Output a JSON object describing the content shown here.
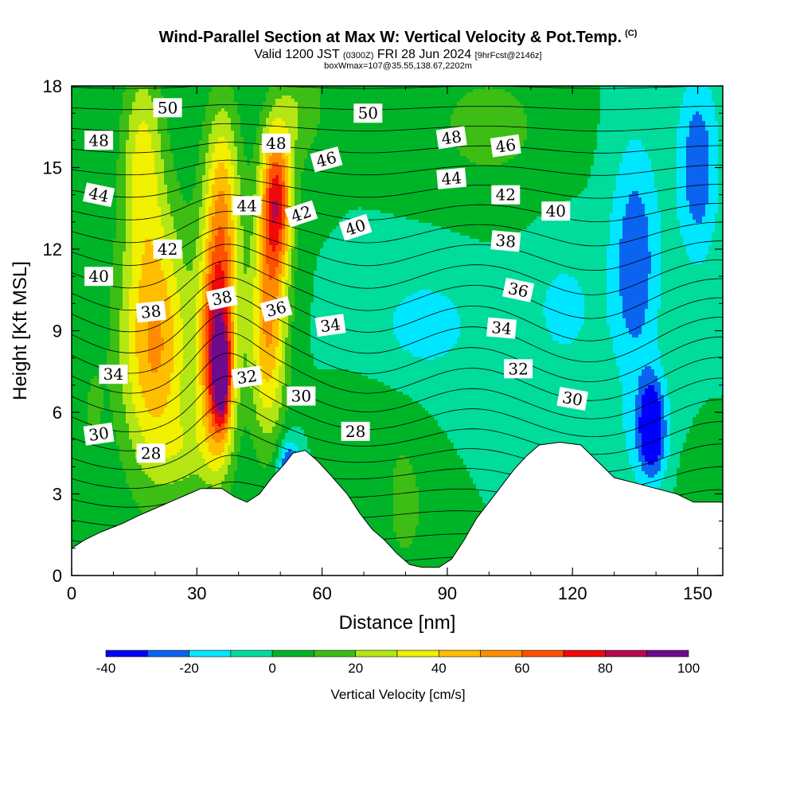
{
  "header": {
    "title": "Wind-Parallel Section at Max W: Vertical Velocity & Pot.Temp.",
    "copyright": "(C)",
    "valid_prefix": "Valid 1200 JST",
    "valid_utc": "(0300Z)",
    "valid_date": "FRI 28 Jun 2024",
    "forecast": "[9hrFcst@2146z]",
    "box_info": "boxWmax=107@35.55,138.67,2202m"
  },
  "chart_data": {
    "type": "heatmap",
    "xlabel": "Distance [nm]",
    "ylabel": "Height [Kft MSL]",
    "xlim": [
      0,
      156
    ],
    "ylim": [
      0,
      18
    ],
    "x_ticks": [
      0,
      30,
      60,
      90,
      120,
      150
    ],
    "y_ticks": [
      0,
      3,
      6,
      9,
      12,
      15,
      18
    ],
    "x_tick_labels": [
      "0",
      "30",
      "60",
      "90",
      "120",
      "150"
    ],
    "y_tick_labels": [
      "0",
      "3",
      "6",
      "9",
      "12",
      "15",
      "18"
    ],
    "colorbar": {
      "title": "Vertical Velocity [cm/s]",
      "levels": [
        -40,
        -30,
        -20,
        -10,
        0,
        10,
        20,
        30,
        40,
        50,
        60,
        70,
        80,
        90,
        100
      ],
      "tick_labels": [
        "-40",
        "-20",
        "0",
        "20",
        "40",
        "60",
        "80",
        "100"
      ],
      "colors": [
        "#0000ff",
        "#0a64f0",
        "#00e6ff",
        "#00dc9c",
        "#00b428",
        "#3cbe14",
        "#b4e614",
        "#f0f000",
        "#ffbe00",
        "#ff8c00",
        "#ff5000",
        "#f00a0a",
        "#b40a4b",
        "#6e0a8c"
      ]
    },
    "terrain": [
      [
        0,
        1.0
      ],
      [
        3,
        1.3
      ],
      [
        7,
        1.6
      ],
      [
        12,
        1.9
      ],
      [
        16,
        2.2
      ],
      [
        19,
        2.4
      ],
      [
        22,
        2.6
      ],
      [
        25,
        2.8
      ],
      [
        28,
        3.0
      ],
      [
        31,
        3.2
      ],
      [
        36,
        3.2
      ],
      [
        39,
        2.9
      ],
      [
        42,
        2.7
      ],
      [
        45,
        3.0
      ],
      [
        48,
        3.6
      ],
      [
        51,
        4.1
      ],
      [
        53,
        4.5
      ],
      [
        56,
        4.6
      ],
      [
        59,
        4.2
      ],
      [
        62,
        3.7
      ],
      [
        66,
        3.0
      ],
      [
        69,
        2.3
      ],
      [
        72,
        1.7
      ],
      [
        75,
        1.3
      ],
      [
        78,
        0.8
      ],
      [
        81,
        0.4
      ],
      [
        84,
        0.3
      ],
      [
        88,
        0.3
      ],
      [
        91,
        0.6
      ],
      [
        94,
        1.3
      ],
      [
        97,
        2.1
      ],
      [
        100,
        2.7
      ],
      [
        103,
        3.3
      ],
      [
        106,
        3.9
      ],
      [
        109,
        4.4
      ],
      [
        112,
        4.8
      ],
      [
        117,
        4.9
      ],
      [
        122,
        4.8
      ],
      [
        126,
        4.2
      ],
      [
        130,
        3.6
      ],
      [
        135,
        3.4
      ],
      [
        140,
        3.2
      ],
      [
        145,
        3.0
      ],
      [
        149,
        2.7
      ],
      [
        153,
        2.7
      ],
      [
        156,
        2.7
      ]
    ],
    "velocity_features": [
      {
        "x": 20,
        "y": 8.5,
        "sx": 8.5,
        "sy": 5.0,
        "w": 52
      },
      {
        "x": 17,
        "y": 15.5,
        "sx": 5,
        "sy": 3.5,
        "w": 30
      },
      {
        "x": 35,
        "y": 8.0,
        "sx": 4.2,
        "sy": 3.8,
        "w": 82
      },
      {
        "x": 36,
        "y": 7.2,
        "sx": 1.8,
        "sy": 1.6,
        "w": 45
      },
      {
        "x": 36,
        "y": 13.5,
        "sx": 4.5,
        "sy": 4.0,
        "w": 45
      },
      {
        "x": 49,
        "y": 13.8,
        "sx": 3.8,
        "sy": 2.8,
        "w": 70
      },
      {
        "x": 47,
        "y": 9.0,
        "sx": 4.5,
        "sy": 4.0,
        "w": 50
      },
      {
        "x": 55,
        "y": 17.5,
        "sx": 6,
        "sy": 2.5,
        "w": 18
      },
      {
        "x": 28,
        "y": 4.5,
        "sx": 6,
        "sy": 1.5,
        "w": 14
      },
      {
        "x": 5,
        "y": 6.0,
        "sx": 3,
        "sy": 2.5,
        "w": 10
      },
      {
        "x": 85,
        "y": 9.2,
        "sx": 14,
        "sy": 2.2,
        "w": -14
      },
      {
        "x": 118,
        "y": 9.8,
        "sx": 9,
        "sy": 2.5,
        "w": -13
      },
      {
        "x": 135,
        "y": 11.5,
        "sx": 6,
        "sy": 4.5,
        "w": -28
      },
      {
        "x": 150,
        "y": 15.0,
        "sx": 5,
        "sy": 3.5,
        "w": -28
      },
      {
        "x": 139,
        "y": 5.5,
        "sx": 3,
        "sy": 1.8,
        "w": -38
      },
      {
        "x": 138,
        "y": 5.0,
        "sx": 7,
        "sy": 2.0,
        "w": -12
      },
      {
        "x": 52,
        "y": 4.0,
        "sx": 2.5,
        "sy": 1.0,
        "w": -36
      },
      {
        "x": 100,
        "y": 16.5,
        "sx": 16,
        "sy": 2.5,
        "w": 14
      },
      {
        "x": 80,
        "y": 2.5,
        "sx": 6,
        "sy": 3.0,
        "w": 13
      },
      {
        "x": 70,
        "y": 5.5,
        "sx": 8,
        "sy": 1.5,
        "w": 10
      },
      {
        "x": 150,
        "y": 3.5,
        "sx": 5,
        "sy": 1.5,
        "w": 9
      }
    ],
    "isentropes": {
      "start": 27,
      "end": 51,
      "step": 1
    },
    "contour_labels": [
      {
        "text": "50",
        "x": 23,
        "y": 17.2,
        "angle": 0
      },
      {
        "text": "50",
        "x": 71,
        "y": 17.0,
        "angle": 0
      },
      {
        "text": "48",
        "x": 6.5,
        "y": 16.0,
        "angle": 0
      },
      {
        "text": "48",
        "x": 49,
        "y": 15.9,
        "angle": 0
      },
      {
        "text": "48",
        "x": 91,
        "y": 16.1,
        "angle": -8
      },
      {
        "text": "46",
        "x": 61,
        "y": 15.3,
        "angle": -15
      },
      {
        "text": "46",
        "x": 104,
        "y": 15.8,
        "angle": -8
      },
      {
        "text": "44",
        "x": 6.5,
        "y": 14.0,
        "angle": 12
      },
      {
        "text": "44",
        "x": 42,
        "y": 13.6,
        "angle": 0
      },
      {
        "text": "44",
        "x": 91,
        "y": 14.6,
        "angle": -5
      },
      {
        "text": "42",
        "x": 23,
        "y": 12.0,
        "angle": 0
      },
      {
        "text": "42",
        "x": 55,
        "y": 13.3,
        "angle": -18
      },
      {
        "text": "42",
        "x": 104,
        "y": 14.0,
        "angle": 0
      },
      {
        "text": "40",
        "x": 6.5,
        "y": 11.0,
        "angle": 0
      },
      {
        "text": "40",
        "x": 68,
        "y": 12.8,
        "angle": -18
      },
      {
        "text": "40",
        "x": 116,
        "y": 13.4,
        "angle": 0
      },
      {
        "text": "38",
        "x": 19,
        "y": 9.7,
        "angle": -6
      },
      {
        "text": "38",
        "x": 36,
        "y": 10.2,
        "angle": -12
      },
      {
        "text": "38",
        "x": 104,
        "y": 12.3,
        "angle": 5
      },
      {
        "text": "36",
        "x": 49,
        "y": 9.8,
        "angle": -15
      },
      {
        "text": "36",
        "x": 107,
        "y": 10.5,
        "angle": 12
      },
      {
        "text": "34",
        "x": 10,
        "y": 7.4,
        "angle": 0
      },
      {
        "text": "34",
        "x": 62,
        "y": 9.2,
        "angle": -8
      },
      {
        "text": "34",
        "x": 103,
        "y": 9.1,
        "angle": 5
      },
      {
        "text": "32",
        "x": 42,
        "y": 7.3,
        "angle": -8
      },
      {
        "text": "32",
        "x": 107,
        "y": 7.6,
        "angle": 0
      },
      {
        "text": "30",
        "x": 6.5,
        "y": 5.2,
        "angle": -8
      },
      {
        "text": "30",
        "x": 55,
        "y": 6.6,
        "angle": 0
      },
      {
        "text": "30",
        "x": 120,
        "y": 6.5,
        "angle": 10
      },
      {
        "text": "28",
        "x": 19,
        "y": 4.5,
        "angle": 0
      },
      {
        "text": "28",
        "x": 68,
        "y": 5.3,
        "angle": 0
      }
    ]
  }
}
